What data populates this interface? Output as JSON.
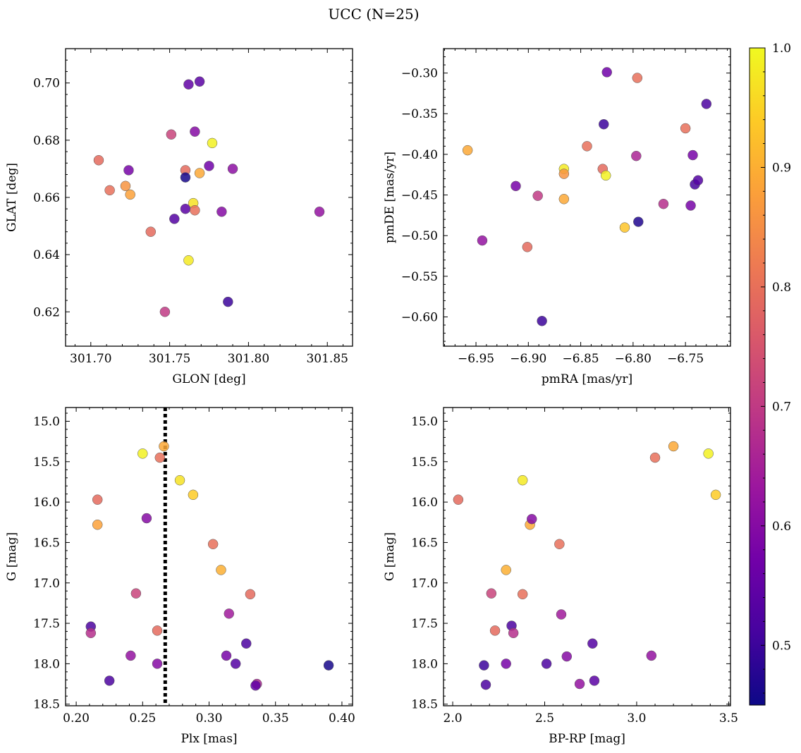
{
  "figure": {
    "title": "UCC (N=25)"
  },
  "colorbar": {
    "colormap": "plasma",
    "range": [
      0.45,
      1.0
    ],
    "ticks": [
      0.5,
      0.6,
      0.7,
      0.8,
      0.9,
      1.0
    ],
    "tick_labels": [
      "0.5",
      "0.6",
      "0.7",
      "0.8",
      "0.9",
      "1.0"
    ],
    "colors": [
      "#0d0887",
      "#46039f",
      "#7201a8",
      "#9c179e",
      "#bd3786",
      "#d8576b",
      "#ed7953",
      "#fb9f3a",
      "#fdca26",
      "#f0f921"
    ]
  },
  "chart_data": [
    {
      "type": "scatter",
      "title": "",
      "xlabel": "GLON [deg]",
      "ylabel": "GLAT [deg]",
      "xlim": [
        301.684,
        301.866
      ],
      "ylim": [
        0.608,
        0.712
      ],
      "y_inverted": false,
      "xticks": [
        301.7,
        301.75,
        301.8,
        301.85
      ],
      "xtick_labels": [
        "301.70",
        "301.75",
        "301.80",
        "301.85"
      ],
      "yticks": [
        0.62,
        0.64,
        0.66,
        0.68,
        0.7
      ],
      "ytick_labels": [
        "0.62",
        "0.64",
        "0.66",
        "0.68",
        "0.70"
      ],
      "points": [
        {
          "x": 301.705,
          "y": 0.673,
          "c": 0.79
        },
        {
          "x": 301.712,
          "y": 0.6625,
          "c": 0.8
        },
        {
          "x": 301.722,
          "y": 0.664,
          "c": 0.86
        },
        {
          "x": 301.725,
          "y": 0.661,
          "c": 0.88
        },
        {
          "x": 301.724,
          "y": 0.6695,
          "c": 0.58
        },
        {
          "x": 301.738,
          "y": 0.648,
          "c": 0.79
        },
        {
          "x": 301.747,
          "y": 0.62,
          "c": 0.7
        },
        {
          "x": 301.751,
          "y": 0.682,
          "c": 0.72
        },
        {
          "x": 301.753,
          "y": 0.6525,
          "c": 0.53
        },
        {
          "x": 301.76,
          "y": 0.6695,
          "c": 0.79
        },
        {
          "x": 301.76,
          "y": 0.667,
          "c": 0.46
        },
        {
          "x": 301.76,
          "y": 0.656,
          "c": 0.54
        },
        {
          "x": 301.762,
          "y": 0.638,
          "c": 0.98
        },
        {
          "x": 301.762,
          "y": 0.6995,
          "c": 0.55
        },
        {
          "x": 301.765,
          "y": 0.658,
          "c": 0.97
        },
        {
          "x": 301.766,
          "y": 0.6555,
          "c": 0.8
        },
        {
          "x": 301.766,
          "y": 0.683,
          "c": 0.6
        },
        {
          "x": 301.769,
          "y": 0.6685,
          "c": 0.89
        },
        {
          "x": 301.769,
          "y": 0.7005,
          "c": 0.54
        },
        {
          "x": 301.775,
          "y": 0.671,
          "c": 0.57
        },
        {
          "x": 301.777,
          "y": 0.679,
          "c": 0.99
        },
        {
          "x": 301.783,
          "y": 0.655,
          "c": 0.6
        },
        {
          "x": 301.787,
          "y": 0.6235,
          "c": 0.5
        },
        {
          "x": 301.79,
          "y": 0.67,
          "c": 0.61
        },
        {
          "x": 301.845,
          "y": 0.655,
          "c": 0.62
        }
      ]
    },
    {
      "type": "scatter",
      "title": "",
      "xlabel": "pmRA [mas/yr]",
      "ylabel": "pmDE [mas/yr]",
      "xlim": [
        -6.981,
        -6.707
      ],
      "ylim": [
        -0.636,
        -0.27
      ],
      "y_inverted": false,
      "xticks": [
        -6.95,
        -6.9,
        -6.85,
        -6.8,
        -6.75
      ],
      "xtick_labels": [
        "−6.95",
        "−6.90",
        "−6.85",
        "−6.80",
        "−6.75"
      ],
      "yticks": [
        -0.6,
        -0.55,
        -0.5,
        -0.45,
        -0.4,
        -0.35,
        -0.3
      ],
      "ytick_labels": [
        "−0.60",
        "−0.55",
        "−0.50",
        "−0.45",
        "−0.40",
        "−0.35",
        "−0.30"
      ],
      "points": [
        {
          "x": -6.958,
          "y": -0.395,
          "c": 0.89
        },
        {
          "x": -6.944,
          "y": -0.506,
          "c": 0.62
        },
        {
          "x": -6.912,
          "y": -0.439,
          "c": 0.58
        },
        {
          "x": -6.901,
          "y": -0.514,
          "c": 0.79
        },
        {
          "x": -6.891,
          "y": -0.451,
          "c": 0.7
        },
        {
          "x": -6.887,
          "y": -0.605,
          "c": 0.5
        },
        {
          "x": -6.866,
          "y": -0.418,
          "c": 0.98
        },
        {
          "x": -6.866,
          "y": -0.424,
          "c": 0.86
        },
        {
          "x": -6.866,
          "y": -0.455,
          "c": 0.89
        },
        {
          "x": -6.844,
          "y": -0.39,
          "c": 0.8
        },
        {
          "x": -6.829,
          "y": -0.418,
          "c": 0.79
        },
        {
          "x": -6.828,
          "y": -0.363,
          "c": 0.5
        },
        {
          "x": -6.826,
          "y": -0.426,
          "c": 0.99
        },
        {
          "x": -6.825,
          "y": -0.299,
          "c": 0.57
        },
        {
          "x": -6.808,
          "y": -0.49,
          "c": 0.93
        },
        {
          "x": -6.797,
          "y": -0.402,
          "c": 0.66
        },
        {
          "x": -6.796,
          "y": -0.306,
          "c": 0.8
        },
        {
          "x": -6.795,
          "y": -0.483,
          "c": 0.47
        },
        {
          "x": -6.771,
          "y": -0.461,
          "c": 0.68
        },
        {
          "x": -6.75,
          "y": -0.368,
          "c": 0.8
        },
        {
          "x": -6.745,
          "y": -0.463,
          "c": 0.58
        },
        {
          "x": -6.743,
          "y": -0.401,
          "c": 0.58
        },
        {
          "x": -6.741,
          "y": -0.437,
          "c": 0.51
        },
        {
          "x": -6.738,
          "y": -0.432,
          "c": 0.53
        },
        {
          "x": -6.73,
          "y": -0.338,
          "c": 0.52
        }
      ]
    },
    {
      "type": "scatter",
      "title": "",
      "xlabel": "Plx [mas]",
      "ylabel": "G [mag]",
      "xlim": [
        0.192,
        0.408
      ],
      "ylim": [
        18.52,
        14.83
      ],
      "y_inverted": true,
      "xticks": [
        0.2,
        0.25,
        0.3,
        0.35,
        0.4
      ],
      "xtick_labels": [
        "0.20",
        "0.25",
        "0.30",
        "0.35",
        "0.40"
      ],
      "yticks": [
        15.0,
        15.5,
        16.0,
        16.5,
        17.0,
        17.5,
        18.0,
        18.5
      ],
      "ytick_labels": [
        "15.0",
        "15.5",
        "16.0",
        "16.5",
        "17.0",
        "17.5",
        "18.0",
        "18.5"
      ],
      "vline": {
        "x": 0.267,
        "style": "dotted"
      },
      "points": [
        {
          "x": 0.25,
          "y": 15.4,
          "c": 0.99
        },
        {
          "x": 0.266,
          "y": 15.31,
          "c": 0.89
        },
        {
          "x": 0.263,
          "y": 15.45,
          "c": 0.8
        },
        {
          "x": 0.278,
          "y": 15.73,
          "c": 0.97
        },
        {
          "x": 0.288,
          "y": 15.91,
          "c": 0.94
        },
        {
          "x": 0.216,
          "y": 15.97,
          "c": 0.79
        },
        {
          "x": 0.216,
          "y": 16.28,
          "c": 0.88
        },
        {
          "x": 0.253,
          "y": 16.2,
          "c": 0.6
        },
        {
          "x": 0.303,
          "y": 16.52,
          "c": 0.8
        },
        {
          "x": 0.309,
          "y": 16.84,
          "c": 0.9
        },
        {
          "x": 0.245,
          "y": 17.13,
          "c": 0.72
        },
        {
          "x": 0.331,
          "y": 17.14,
          "c": 0.79
        },
        {
          "x": 0.315,
          "y": 17.38,
          "c": 0.64
        },
        {
          "x": 0.211,
          "y": 17.54,
          "c": 0.52
        },
        {
          "x": 0.211,
          "y": 17.62,
          "c": 0.68
        },
        {
          "x": 0.261,
          "y": 17.59,
          "c": 0.79
        },
        {
          "x": 0.328,
          "y": 17.75,
          "c": 0.52
        },
        {
          "x": 0.241,
          "y": 17.9,
          "c": 0.62
        },
        {
          "x": 0.313,
          "y": 17.9,
          "c": 0.58
        },
        {
          "x": 0.261,
          "y": 18.0,
          "c": 0.6
        },
        {
          "x": 0.32,
          "y": 18.0,
          "c": 0.53
        },
        {
          "x": 0.39,
          "y": 18.02,
          "c": 0.46
        },
        {
          "x": 0.225,
          "y": 18.21,
          "c": 0.52
        },
        {
          "x": 0.336,
          "y": 18.25,
          "c": 0.66
        },
        {
          "x": 0.335,
          "y": 18.27,
          "c": 0.55
        }
      ]
    },
    {
      "type": "scatter",
      "title": "",
      "xlabel": "BP-RP [mag]",
      "ylabel": "G [mag]",
      "xlim": [
        1.95,
        3.51
      ],
      "ylim": [
        18.52,
        14.83
      ],
      "y_inverted": true,
      "xticks": [
        2.0,
        2.5,
        3.0,
        3.5
      ],
      "xtick_labels": [
        "2.0",
        "2.5",
        "3.0",
        "3.5"
      ],
      "yticks": [
        15.0,
        15.5,
        16.0,
        16.5,
        17.0,
        17.5,
        18.0,
        18.5
      ],
      "ytick_labels": [
        "15.0",
        "15.5",
        "16.0",
        "16.5",
        "17.0",
        "17.5",
        "18.0",
        "18.5"
      ],
      "points": [
        {
          "x": 2.03,
          "y": 15.97,
          "c": 0.79
        },
        {
          "x": 2.17,
          "y": 18.02,
          "c": 0.5
        },
        {
          "x": 2.18,
          "y": 18.26,
          "c": 0.52
        },
        {
          "x": 2.21,
          "y": 17.13,
          "c": 0.72
        },
        {
          "x": 2.23,
          "y": 17.59,
          "c": 0.79
        },
        {
          "x": 2.29,
          "y": 18.0,
          "c": 0.58
        },
        {
          "x": 2.29,
          "y": 16.84,
          "c": 0.9
        },
        {
          "x": 2.32,
          "y": 17.53,
          "c": 0.52
        },
        {
          "x": 2.33,
          "y": 17.62,
          "c": 0.68
        },
        {
          "x": 2.38,
          "y": 15.73,
          "c": 0.98
        },
        {
          "x": 2.38,
          "y": 17.14,
          "c": 0.8
        },
        {
          "x": 2.42,
          "y": 16.28,
          "c": 0.89
        },
        {
          "x": 2.43,
          "y": 16.21,
          "c": 0.6
        },
        {
          "x": 2.51,
          "y": 18.0,
          "c": 0.52
        },
        {
          "x": 2.58,
          "y": 16.52,
          "c": 0.8
        },
        {
          "x": 2.59,
          "y": 17.39,
          "c": 0.64
        },
        {
          "x": 2.62,
          "y": 17.91,
          "c": 0.6
        },
        {
          "x": 2.69,
          "y": 18.25,
          "c": 0.62
        },
        {
          "x": 2.76,
          "y": 17.75,
          "c": 0.53
        },
        {
          "x": 2.77,
          "y": 18.21,
          "c": 0.54
        },
        {
          "x": 3.08,
          "y": 17.9,
          "c": 0.62
        },
        {
          "x": 3.1,
          "y": 15.45,
          "c": 0.8
        },
        {
          "x": 3.2,
          "y": 15.31,
          "c": 0.89
        },
        {
          "x": 3.39,
          "y": 15.4,
          "c": 0.99
        },
        {
          "x": 3.43,
          "y": 15.91,
          "c": 0.94
        }
      ]
    }
  ]
}
